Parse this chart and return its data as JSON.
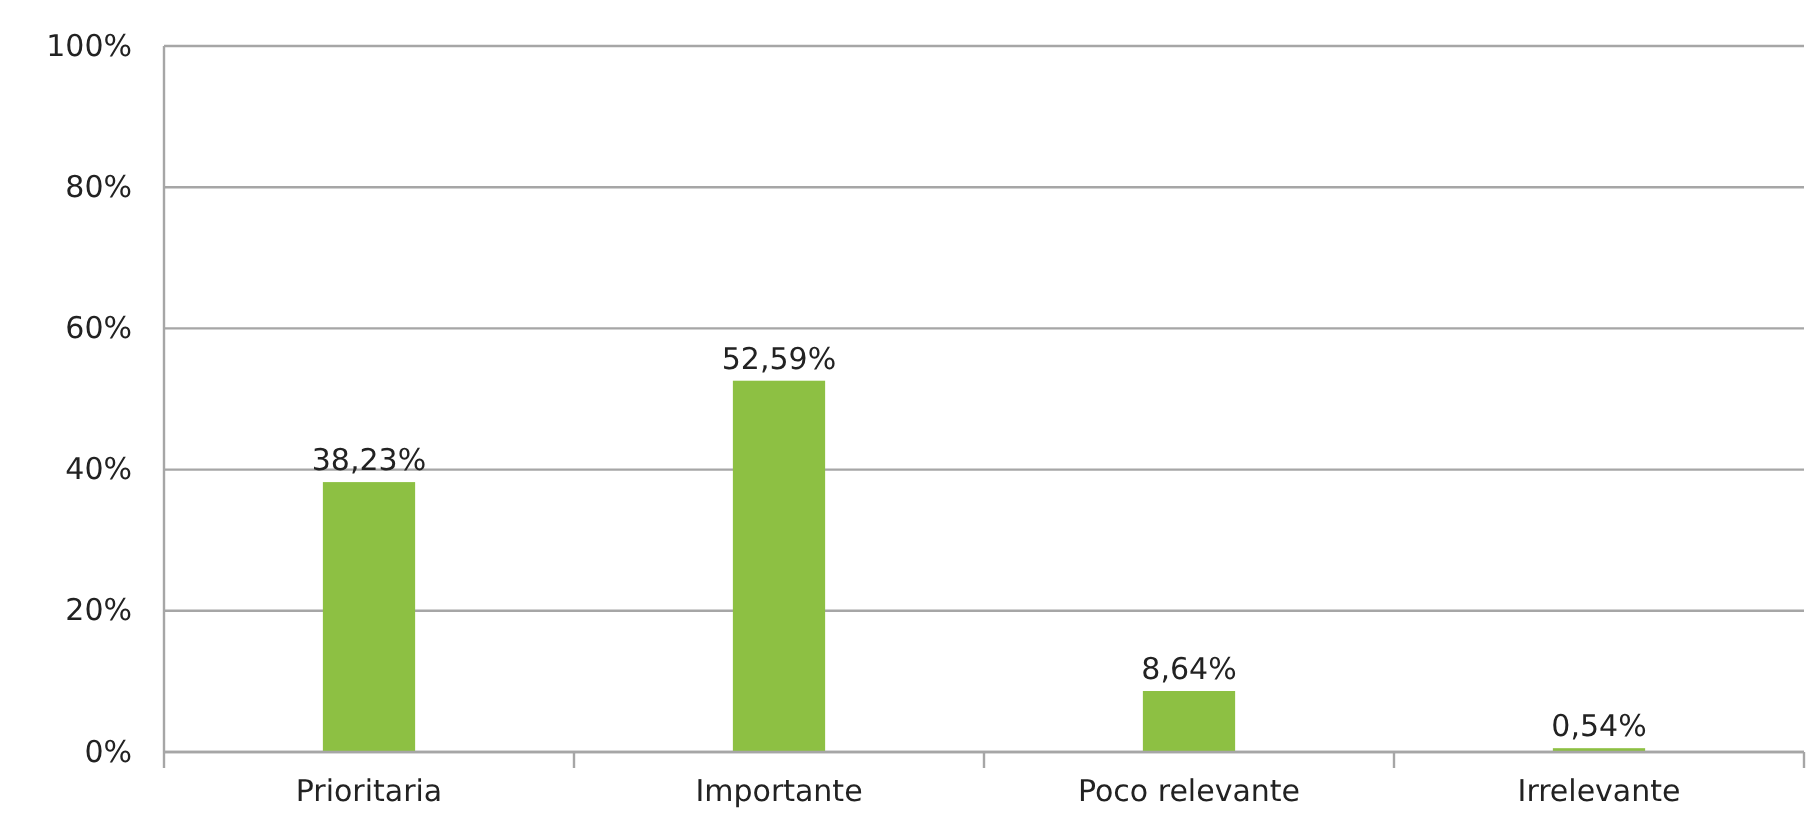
{
  "chart_data": {
    "type": "bar",
    "categories": [
      "Prioritaria",
      "Importante",
      "Poco relevante",
      "Irrelevante"
    ],
    "values": [
      38.23,
      52.59,
      8.64,
      0.54
    ],
    "color": "#8dc043",
    "value_labels": [
      "38,23%",
      "52,59%",
      "8,64%",
      "0,54%"
    ],
    "ylim": [
      0,
      100
    ],
    "yticks": [
      {
        "value": 0,
        "label": "0%"
      },
      {
        "value": 20,
        "label": "20%"
      },
      {
        "value": 40,
        "label": "40%"
      },
      {
        "value": 60,
        "label": "60%"
      },
      {
        "value": 80,
        "label": "80%"
      },
      {
        "value": 100,
        "label": "100%"
      }
    ],
    "grid": "y"
  }
}
